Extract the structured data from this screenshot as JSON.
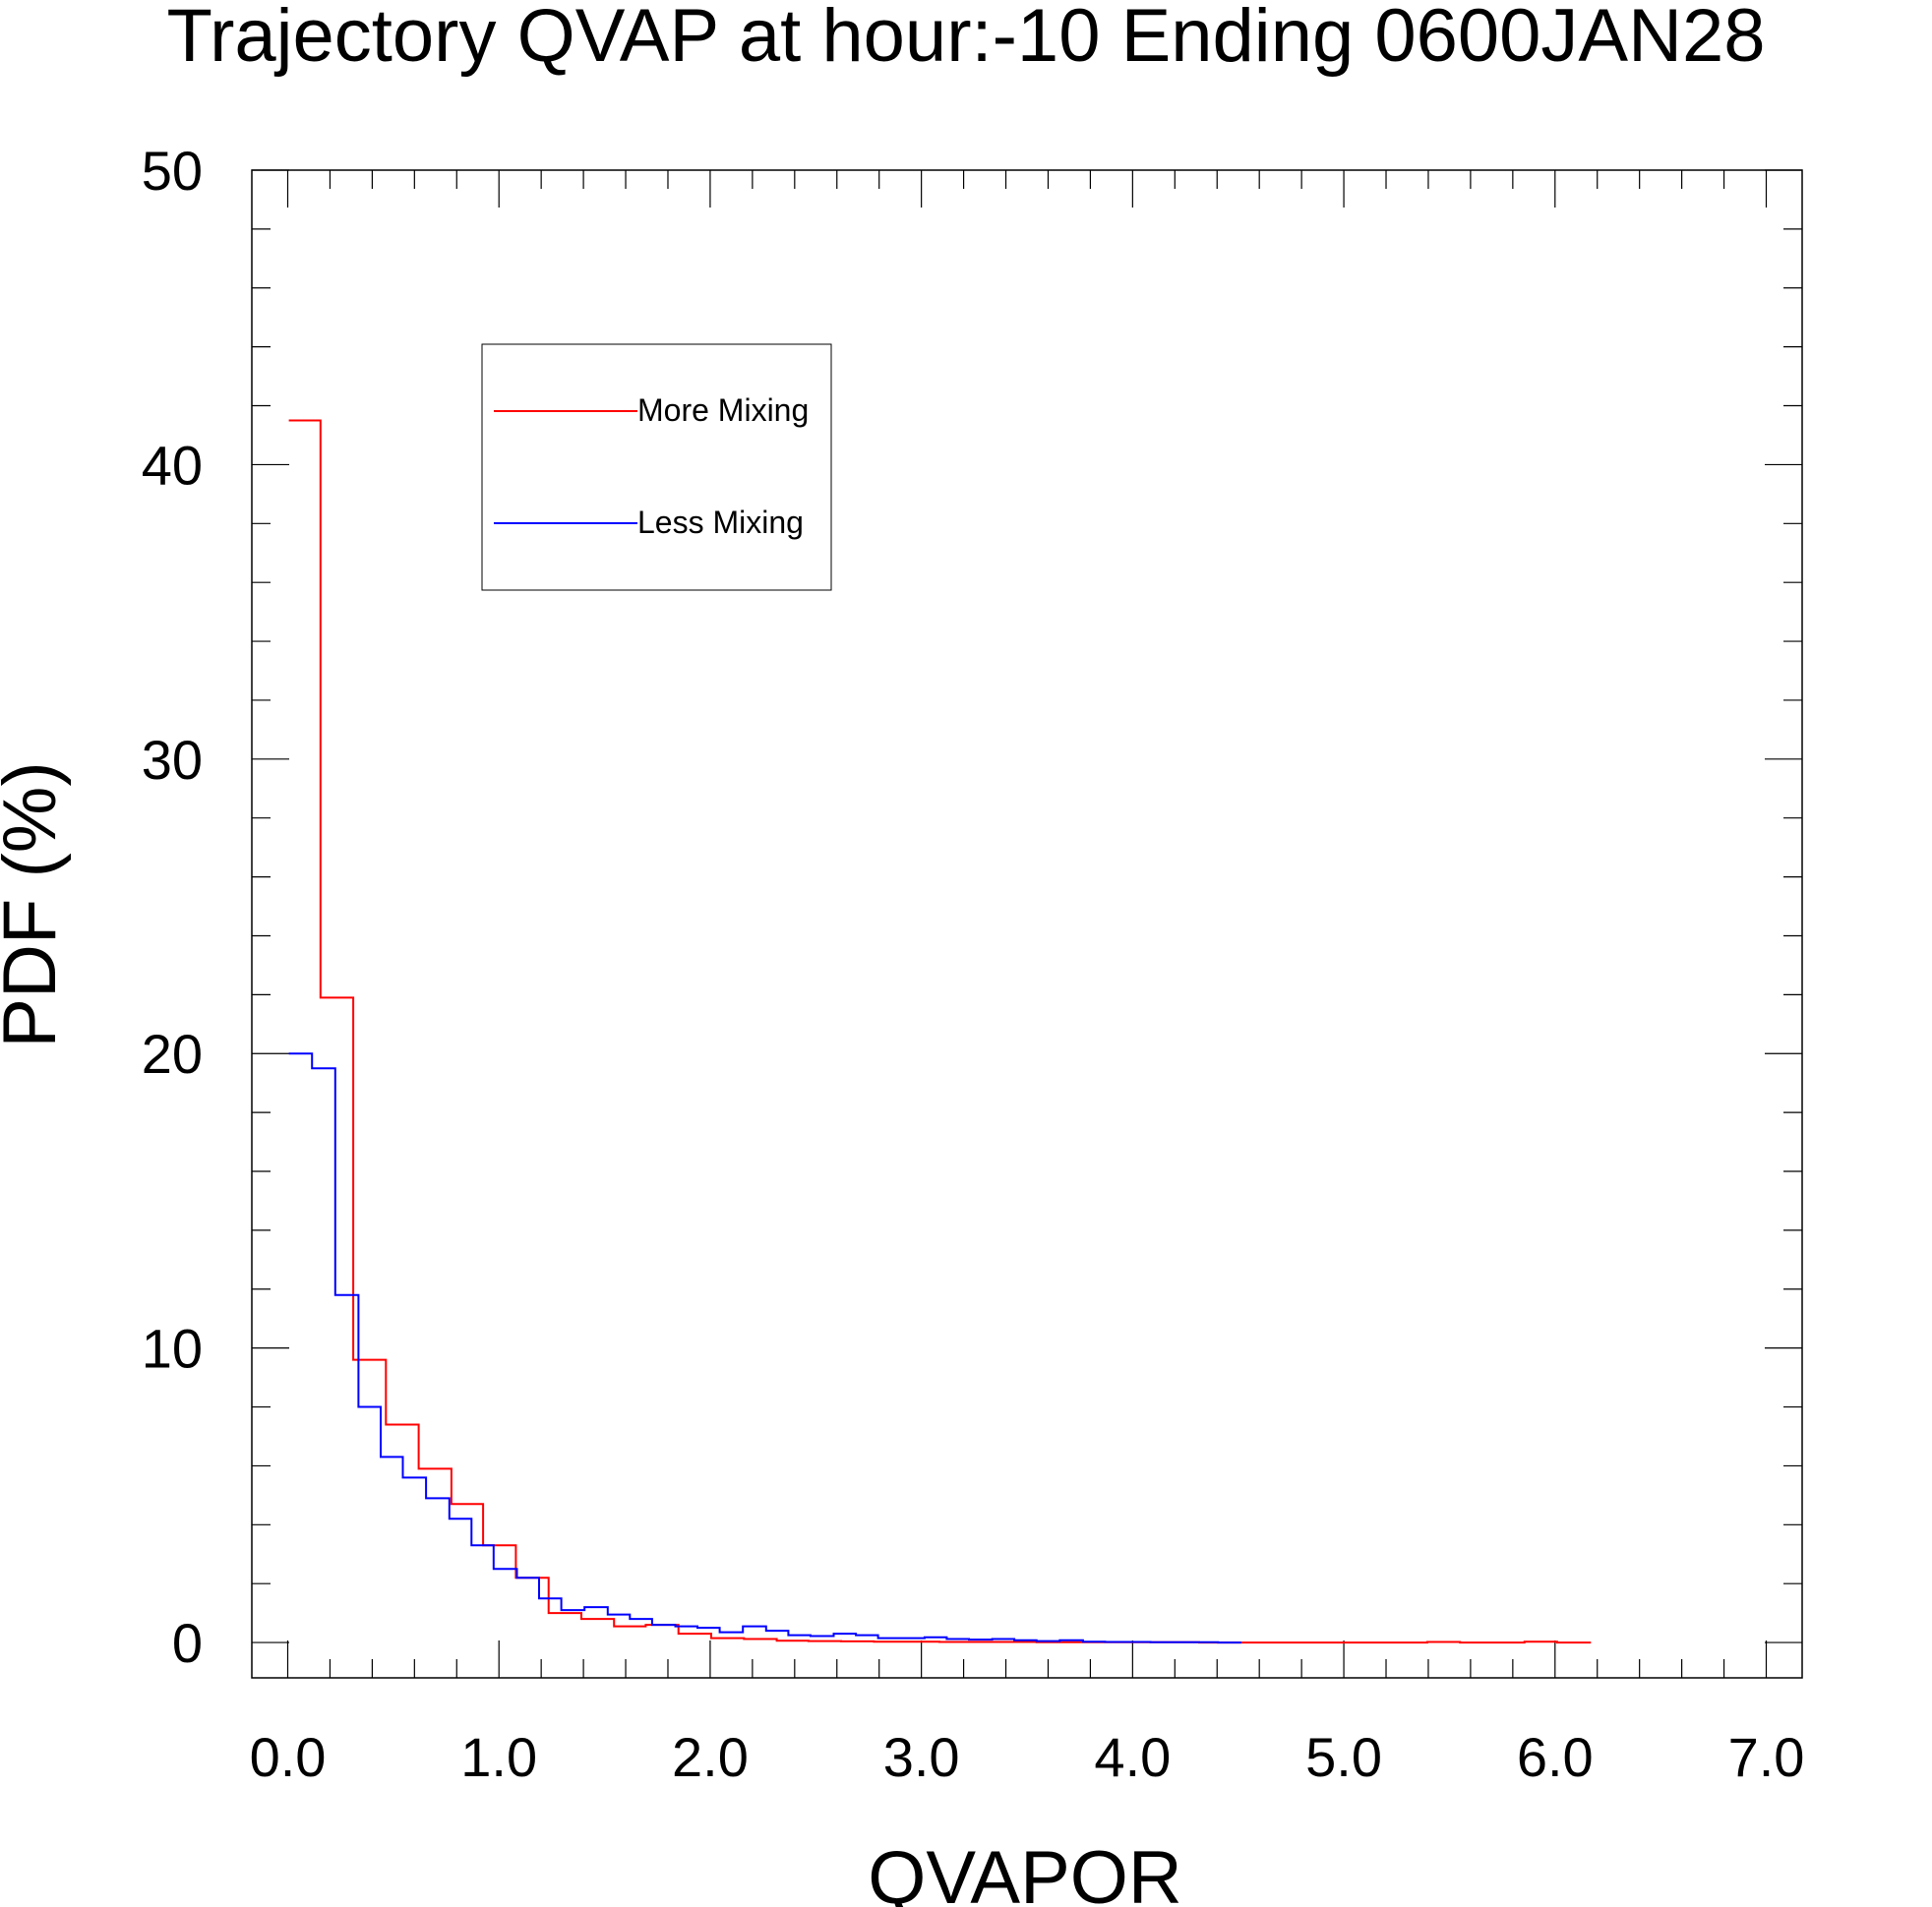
{
  "chart_data": {
    "type": "line",
    "step": true,
    "title": "Trajectory QVAP at hour:-10 Ending 0600JAN28",
    "xlabel": "QVAPOR",
    "ylabel": "PDF (%)",
    "xlim": [
      -0.17,
      7.17
    ],
    "ylim": [
      -1.2,
      50
    ],
    "x_ticks": [
      0.0,
      1.0,
      2.0,
      3.0,
      4.0,
      5.0,
      6.0,
      7.0
    ],
    "x_tick_labels": [
      "0.0",
      "1.0",
      "2.0",
      "3.0",
      "4.0",
      "5.0",
      "6.0",
      "7.0"
    ],
    "x_minor_step": 0.2,
    "y_ticks": [
      0,
      10,
      20,
      30,
      40,
      50
    ],
    "y_tick_labels": [
      "0",
      "10",
      "20",
      "30",
      "40",
      "50"
    ],
    "y_minor_step": 2,
    "grid": false,
    "legend": {
      "placement": "top-left",
      "entries": [
        "More Mixing",
        "Less Mixing"
      ]
    },
    "series": [
      {
        "name": "More Mixing",
        "color": "#ff0000",
        "x": [
          0.08,
          0.23,
          0.39,
          0.54,
          0.7,
          0.85,
          1.0,
          1.16,
          1.31,
          1.47,
          1.62,
          1.77,
          1.93,
          2.08,
          2.24,
          2.39,
          2.54,
          2.7,
          2.85,
          3.01,
          3.16,
          3.31,
          3.47,
          3.62,
          3.78,
          3.93,
          4.08,
          4.24,
          4.39,
          4.55,
          4.7,
          4.86,
          5.01,
          5.16,
          5.32,
          5.47,
          5.63,
          5.78,
          5.93,
          6.09
        ],
        "y": [
          41.5,
          21.9,
          9.6,
          7.4,
          5.9,
          4.7,
          3.3,
          2.2,
          1.0,
          0.8,
          0.55,
          0.6,
          0.3,
          0.15,
          0.12,
          0.06,
          0.05,
          0.04,
          0.03,
          0.03,
          0.02,
          0.02,
          0.02,
          0.01,
          0.01,
          0.01,
          0.01,
          0.01,
          0.0,
          0.0,
          0.0,
          0.0,
          0.0,
          0.0,
          0.0,
          0.02,
          0.0,
          0.0,
          0.03,
          0.0
        ]
      },
      {
        "name": "Less Mixing",
        "color": "#0000ff",
        "x": [
          0.06,
          0.17,
          0.28,
          0.39,
          0.49,
          0.6,
          0.71,
          0.82,
          0.92,
          1.03,
          1.14,
          1.24,
          1.35,
          1.46,
          1.57,
          1.67,
          1.78,
          1.89,
          1.99,
          2.1,
          2.21,
          2.32,
          2.42,
          2.53,
          2.64,
          2.74,
          2.85,
          2.96,
          3.07,
          3.17,
          3.28,
          3.39,
          3.49,
          3.6,
          3.71,
          3.82,
          3.92,
          4.03,
          4.14,
          4.24,
          4.35,
          4.46
        ],
        "y": [
          20.0,
          19.5,
          11.8,
          8.0,
          6.3,
          5.6,
          4.9,
          4.2,
          3.3,
          2.5,
          2.2,
          1.5,
          1.1,
          1.2,
          0.95,
          0.8,
          0.6,
          0.55,
          0.5,
          0.35,
          0.55,
          0.4,
          0.25,
          0.22,
          0.3,
          0.25,
          0.15,
          0.15,
          0.18,
          0.12,
          0.1,
          0.12,
          0.08,
          0.05,
          0.08,
          0.03,
          0.02,
          0.02,
          0.01,
          0.01,
          0.01,
          0.0
        ]
      }
    ]
  }
}
